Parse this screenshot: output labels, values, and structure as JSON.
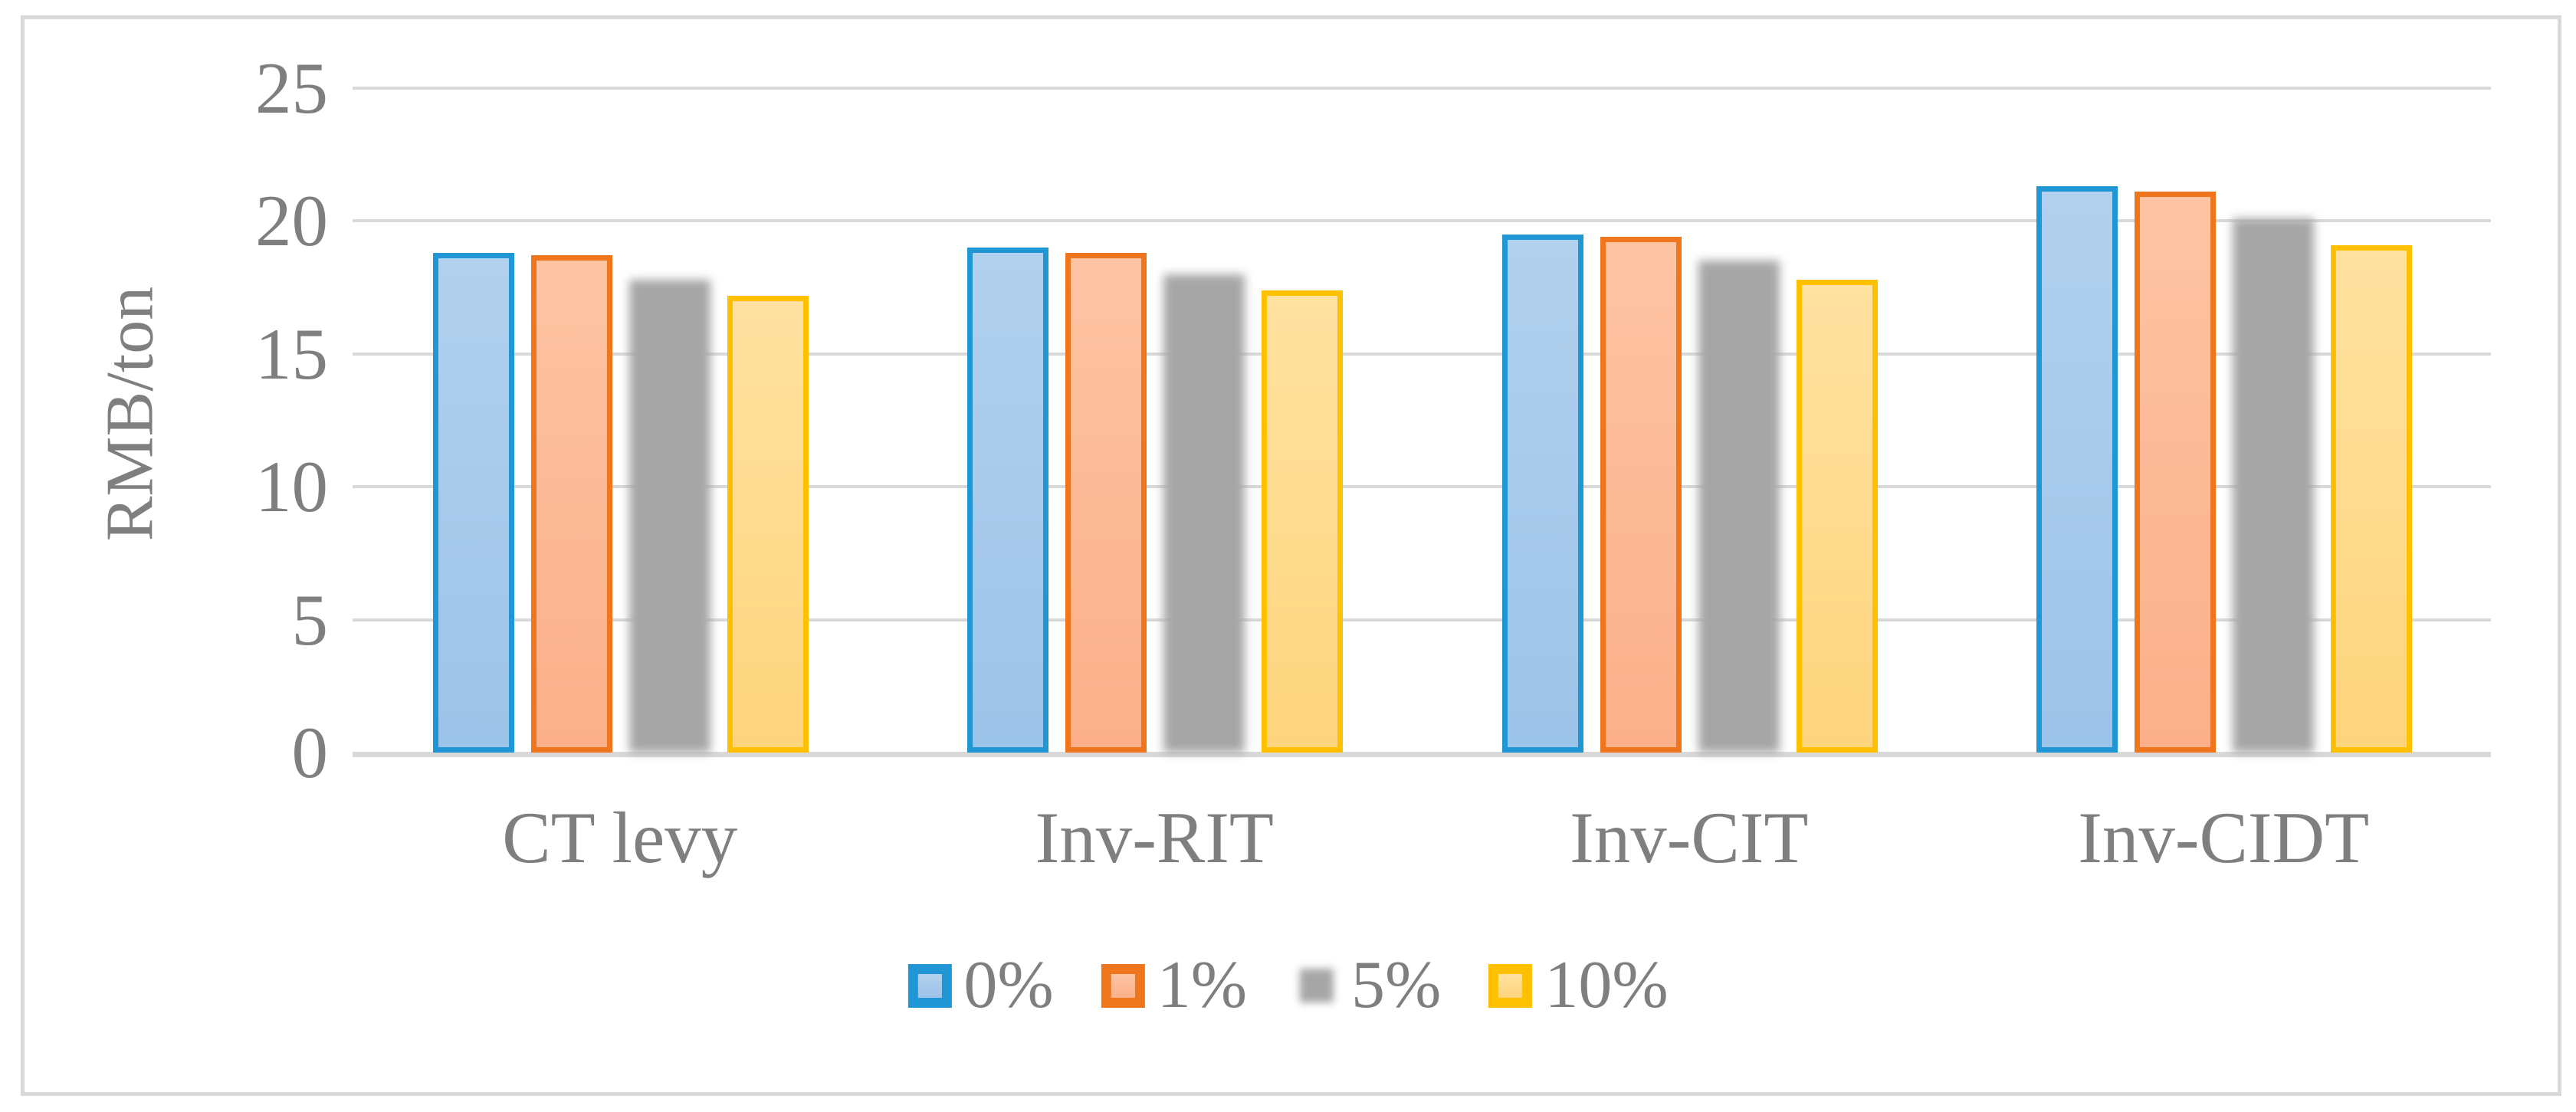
{
  "figure": {
    "background": "#ffffff",
    "frame_color": "#d9d9d9"
  },
  "chart_data": {
    "type": "bar",
    "title": "",
    "y_axis_title": "RMB/ton",
    "categories": [
      "CT levy",
      "Inv-RIT",
      "Inv-CIT",
      "Inv-CIDT"
    ],
    "series": [
      {
        "name": "0%",
        "border": "#2196d5",
        "fill": [
          "#b2d1ee",
          "#9cc3e8"
        ],
        "soft_edges": false,
        "values": [
          18.8,
          19.0,
          19.5,
          21.3
        ]
      },
      {
        "name": "1%",
        "border": "#f0761e",
        "fill": [
          "#fdc4a4",
          "#fbb08a"
        ],
        "soft_edges": false,
        "values": [
          18.7,
          18.8,
          19.4,
          21.1
        ]
      },
      {
        "name": "5%",
        "border": "none",
        "fill": [
          "#a6a6a6",
          "#a6a6a6"
        ],
        "soft_edges": true,
        "values": [
          17.8,
          18.0,
          18.5,
          20.1
        ]
      },
      {
        "name": "10%",
        "border": "#ffc000",
        "fill": [
          "#ffe1a0",
          "#fed57d"
        ],
        "soft_edges": false,
        "values": [
          17.2,
          17.4,
          17.8,
          19.1
        ]
      }
    ],
    "ylim": [
      0,
      25
    ],
    "yticks": [
      0,
      5,
      10,
      15,
      20,
      25
    ],
    "grid": "horizontal-only",
    "grid_color": "#d9d9d9",
    "text_color": "#7f7f7f",
    "legend_position": "bottom",
    "legend_labels": [
      "0%",
      "1%",
      "5%",
      "10%"
    ]
  }
}
